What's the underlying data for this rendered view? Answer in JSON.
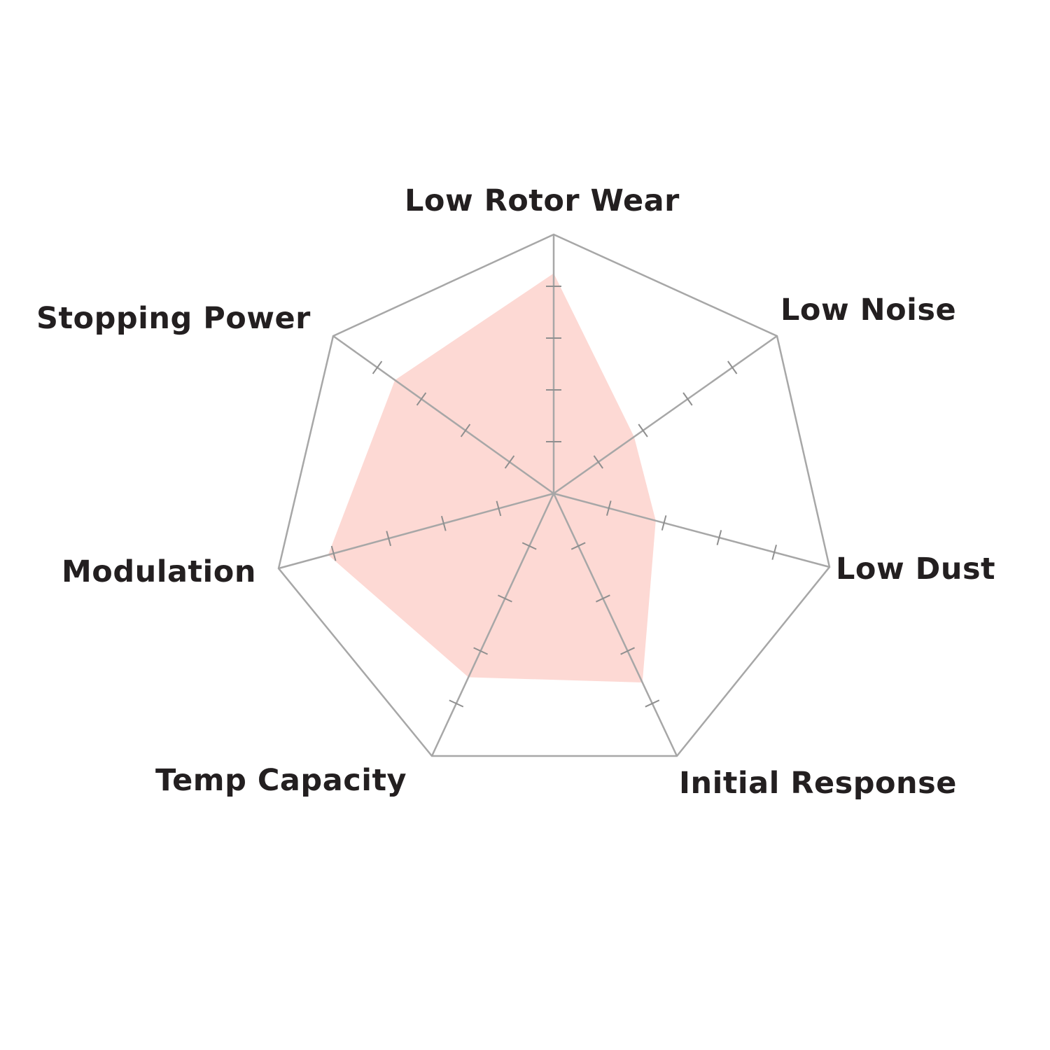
{
  "chart_data": {
    "type": "radar",
    "axes": [
      "Low Rotor Wear",
      "Low Noise",
      "Low Dust",
      "Initial Response",
      "Temp Capacity",
      "Modulation",
      "Stopping Power"
    ],
    "values": [
      4.25,
      1.8,
      1.85,
      3.6,
      3.5,
      4.1,
      3.6
    ],
    "range": [
      0,
      5
    ],
    "ticks_per_axis": 4,
    "grid": "outer heptagon only",
    "colors": {
      "fill": "#fdd9d4",
      "grid": "#a7a7a7",
      "ticks": "#8f8f8f",
      "labels": "#231f20"
    }
  }
}
